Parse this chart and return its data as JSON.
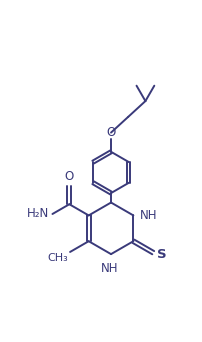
{
  "background": "#ffffff",
  "line_color": "#3a3a7a",
  "line_width": 1.4,
  "font_size": 8.5,
  "figsize": [
    2.02,
    3.42
  ],
  "dpi": 100,
  "xlim": [
    -3.5,
    3.5
  ],
  "ylim": [
    -4.2,
    5.0
  ]
}
